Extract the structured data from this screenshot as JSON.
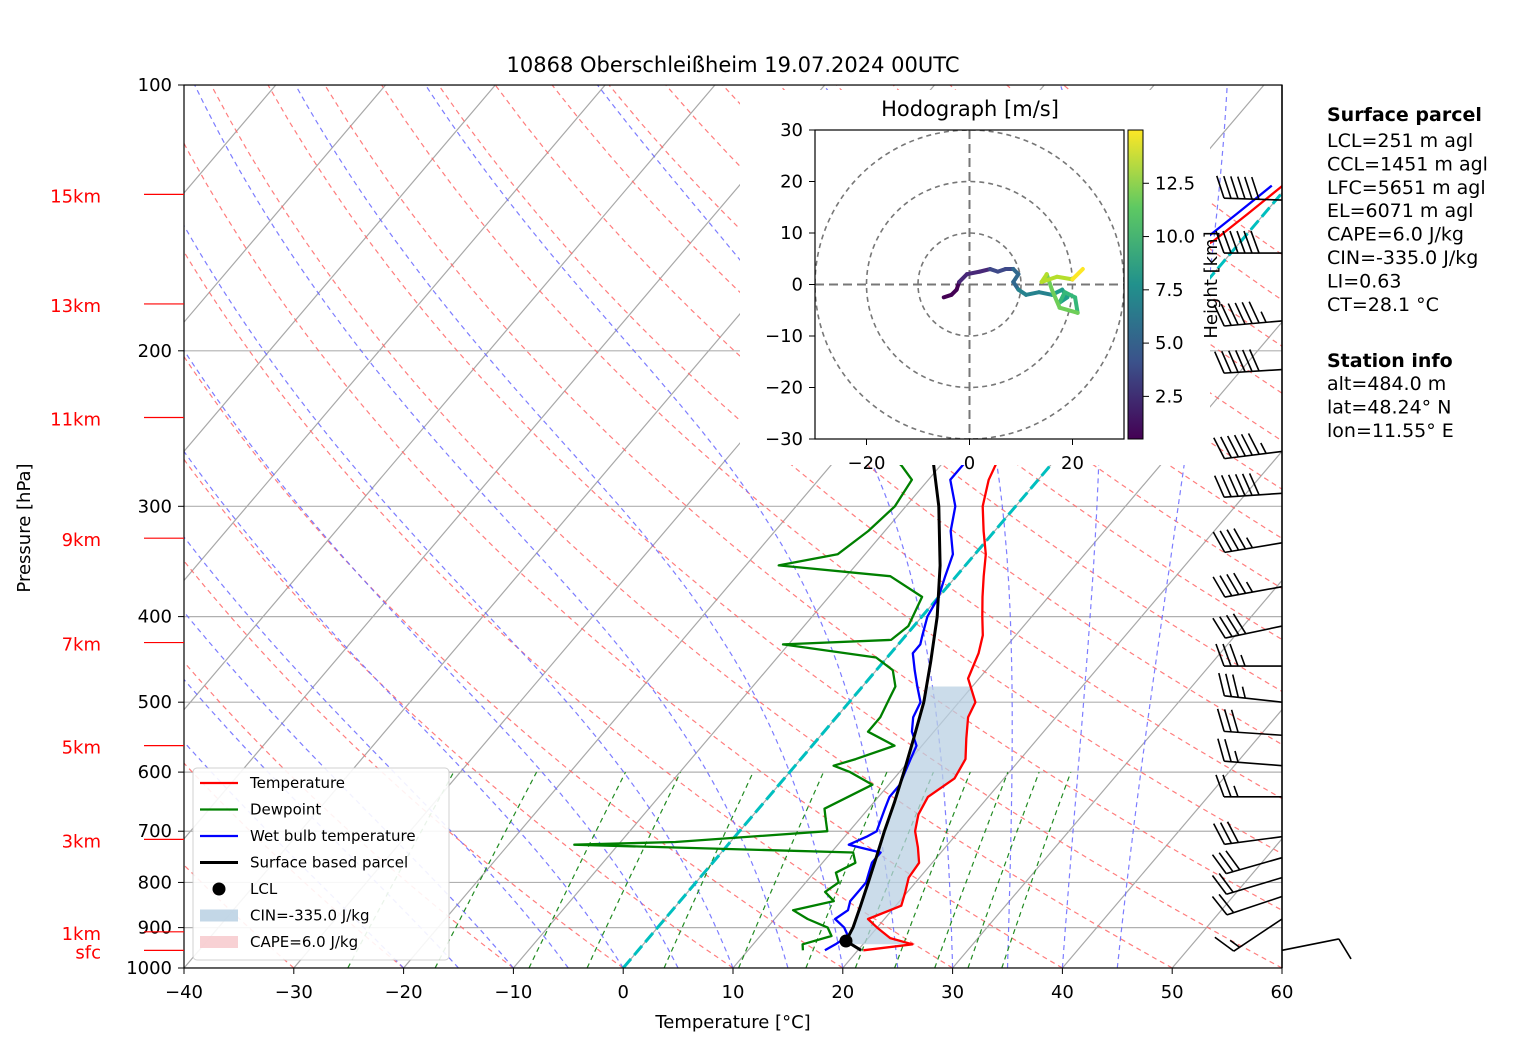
{
  "chart_data": {
    "type": "line",
    "title": "10868 Oberschleißheim 19.07.2024 00UTC",
    "xlabel": "Temperature [°C]",
    "ylabel": "Pressure [hPa]",
    "xlim": [
      -40,
      60
    ],
    "ylim": [
      1000,
      100
    ],
    "y_scale": "log",
    "grid": true,
    "legend_position": "lower-left",
    "x_ticks": [
      "−40",
      "−30",
      "−20",
      "−10",
      "0",
      "10",
      "20",
      "30",
      "40",
      "50",
      "60"
    ],
    "y_ticks": [
      {
        "p": 100,
        "label": "100"
      },
      {
        "p": 200,
        "label": "200"
      },
      {
        "p": 300,
        "label": "300"
      },
      {
        "p": 400,
        "label": "400"
      },
      {
        "p": 500,
        "label": "500"
      },
      {
        "p": 600,
        "label": "600"
      },
      {
        "p": 700,
        "label": "700"
      },
      {
        "p": 800,
        "label": "800"
      },
      {
        "p": 900,
        "label": "900"
      },
      {
        "p": 1000,
        "label": "1000"
      }
    ],
    "height_labels": [
      {
        "label": "sfc",
        "p": 955
      },
      {
        "label": "1km",
        "p": 910
      },
      {
        "label": "3km",
        "p": 715
      },
      {
        "label": "5km",
        "p": 560
      },
      {
        "label": "7km",
        "p": 428
      },
      {
        "label": "9km",
        "p": 326
      },
      {
        "label": "11km",
        "p": 238
      },
      {
        "label": "13km",
        "p": 177
      },
      {
        "label": "15km",
        "p": 133
      }
    ],
    "colors": {
      "temperature": "#ff0000",
      "dewpoint": "#008000",
      "wetbulb": "#0000ff",
      "parcel": "#000000",
      "cin": "#b9d0e3",
      "cape": "#f7c9cc",
      "zero_isotherm": "#00bfbf",
      "height_label": "#ff0000"
    },
    "series": [
      {
        "name": "Temperature",
        "points": [
          [
            955,
            20.5
          ],
          [
            940,
            24.5
          ],
          [
            925,
            22.0
          ],
          [
            900,
            20.0
          ],
          [
            880,
            18.5
          ],
          [
            850,
            20.5
          ],
          [
            820,
            19.8
          ],
          [
            790,
            19.0
          ],
          [
            760,
            18.8
          ],
          [
            730,
            17.5
          ],
          [
            700,
            16.0
          ],
          [
            670,
            15.0
          ],
          [
            640,
            14.5
          ],
          [
            610,
            15.5
          ],
          [
            580,
            15.0
          ],
          [
            550,
            13.5
          ],
          [
            520,
            12.0
          ],
          [
            500,
            11.5
          ],
          [
            470,
            9.0
          ],
          [
            440,
            8.0
          ],
          [
            420,
            7.0
          ],
          [
            400,
            5.5
          ],
          [
            380,
            4.0
          ],
          [
            360,
            2.5
          ],
          [
            340,
            1.0
          ],
          [
            320,
            -1.0
          ],
          [
            300,
            -3.0
          ],
          [
            280,
            -4.5
          ],
          [
            260,
            -5.5
          ],
          [
            240,
            -6.5
          ],
          [
            220,
            -8.0
          ],
          [
            205,
            -8.8
          ],
          [
            195,
            -8.5
          ],
          [
            180,
            -7.0
          ],
          [
            170,
            -6.0
          ],
          [
            165,
            -4.5
          ],
          [
            155,
            -3.5
          ],
          [
            150,
            -2.5
          ],
          [
            140,
            -1.5
          ],
          [
            130,
            -0.5
          ]
        ]
      },
      {
        "name": "Dewpoint",
        "points": [
          [
            955,
            15.0
          ],
          [
            940,
            14.5
          ],
          [
            920,
            16.5
          ],
          [
            900,
            15.5
          ],
          [
            880,
            13.0
          ],
          [
            860,
            11.0
          ],
          [
            840,
            14.0
          ],
          [
            820,
            12.5
          ],
          [
            800,
            13.0
          ],
          [
            780,
            12.0
          ],
          [
            760,
            13.0
          ],
          [
            740,
            12.0
          ],
          [
            725,
            -14.0
          ],
          [
            720,
            -5.0
          ],
          [
            700,
            8.0
          ],
          [
            680,
            7.0
          ],
          [
            660,
            6.0
          ],
          [
            620,
            8.5
          ],
          [
            600,
            5.5
          ],
          [
            590,
            3.5
          ],
          [
            580,
            5.0
          ],
          [
            560,
            7.5
          ],
          [
            540,
            4.0
          ],
          [
            520,
            4.0
          ],
          [
            500,
            3.5
          ],
          [
            480,
            3.0
          ],
          [
            460,
            1.5
          ],
          [
            445,
            -1.0
          ],
          [
            430,
            -10.5
          ],
          [
            425,
            -1.0
          ],
          [
            410,
            -0.5
          ],
          [
            380,
            -1.5
          ],
          [
            360,
            -6.0
          ],
          [
            350,
            -17.0
          ],
          [
            340,
            -12.5
          ],
          [
            320,
            -11.5
          ],
          [
            300,
            -11.0
          ],
          [
            280,
            -11.5
          ],
          [
            270,
            -13.5
          ],
          [
            260,
            -16.0
          ],
          [
            245,
            -22.0
          ],
          [
            230,
            -23.5
          ],
          [
            215,
            -23.0
          ],
          [
            200,
            -20.0
          ],
          [
            190,
            -22.0
          ],
          [
            185,
            -28.0
          ],
          [
            180,
            -25.0
          ],
          [
            175,
            -25.0
          ],
          [
            170,
            -29.0
          ],
          [
            165,
            -27.5
          ],
          [
            155,
            -28.5
          ],
          [
            150,
            -28.5
          ],
          [
            145,
            -29.0
          ],
          [
            140,
            -29.5
          ],
          [
            135,
            -30.0
          ],
          [
            130,
            -29.0
          ]
        ]
      },
      {
        "name": "Wet bulb temperature",
        "points": [
          [
            955,
            17.0
          ],
          [
            940,
            17.5
          ],
          [
            920,
            18.0
          ],
          [
            900,
            17.0
          ],
          [
            880,
            15.5
          ],
          [
            860,
            16.0
          ],
          [
            840,
            15.5
          ],
          [
            820,
            15.5
          ],
          [
            800,
            15.5
          ],
          [
            780,
            15.0
          ],
          [
            760,
            14.5
          ],
          [
            740,
            14.5
          ],
          [
            725,
            11.0
          ],
          [
            710,
            12.0
          ],
          [
            700,
            12.5
          ],
          [
            680,
            12.0
          ],
          [
            660,
            11.5
          ],
          [
            640,
            11.0
          ],
          [
            620,
            11.0
          ],
          [
            600,
            10.5
          ],
          [
            580,
            10.0
          ],
          [
            560,
            9.5
          ],
          [
            540,
            8.0
          ],
          [
            520,
            7.0
          ],
          [
            500,
            6.5
          ],
          [
            480,
            5.0
          ],
          [
            460,
            3.5
          ],
          [
            440,
            2.0
          ],
          [
            430,
            2.0
          ],
          [
            420,
            1.5
          ],
          [
            400,
            0.5
          ],
          [
            380,
            0.0
          ],
          [
            360,
            -1.0
          ],
          [
            340,
            -2.0
          ],
          [
            320,
            -4.0
          ],
          [
            300,
            -5.5
          ],
          [
            280,
            -8.0
          ],
          [
            260,
            -8.0
          ],
          [
            240,
            -9.0
          ],
          [
            220,
            -10.0
          ],
          [
            205,
            -10.5
          ],
          [
            195,
            -10.0
          ],
          [
            180,
            -8.5
          ],
          [
            170,
            -7.5
          ],
          [
            165,
            -6.0
          ],
          [
            155,
            -4.5
          ],
          [
            150,
            -3.5
          ],
          [
            140,
            -2.5
          ],
          [
            130,
            -1.5
          ]
        ]
      },
      {
        "name": "Surface based parcel",
        "points": [
          [
            955,
            20.3
          ],
          [
            932,
            18.2
          ],
          [
            900,
            17.8
          ],
          [
            850,
            16.8
          ],
          [
            800,
            15.7
          ],
          [
            750,
            14.5
          ],
          [
            700,
            13.2
          ],
          [
            650,
            11.9
          ],
          [
            600,
            10.4
          ],
          [
            550,
            8.7
          ],
          [
            500,
            6.8
          ],
          [
            450,
            4.3
          ],
          [
            400,
            1.4
          ],
          [
            350,
            -2.3
          ],
          [
            300,
            -7.0
          ],
          [
            250,
            -13.2
          ],
          [
            200,
            -20.7
          ],
          [
            150,
            -29.5
          ],
          [
            130,
            -33.0
          ]
        ]
      }
    ],
    "lcl_marker": {
      "p": 932,
      "t": 18.2
    },
    "legend": [
      "Temperature",
      "Dewpoint",
      "Wet bulb temperature",
      "Surface based parcel",
      "LCL",
      "CIN=-335.0 J/kg",
      "CAPE=6.0 J/kg"
    ],
    "wind_barbs": [
      {
        "p": 955,
        "u": 5,
        "v": 1
      },
      {
        "p": 880,
        "u": -6,
        "v": -4
      },
      {
        "p": 830,
        "u": -9,
        "v": -3
      },
      {
        "p": 790,
        "u": -10,
        "v": -3
      },
      {
        "p": 750,
        "u": -14,
        "v": -4
      },
      {
        "p": 710,
        "u": -15,
        "v": -2
      },
      {
        "p": 640,
        "u": -13,
        "v": 0
      },
      {
        "p": 590,
        "u": -13,
        "v": 1
      },
      {
        "p": 545,
        "u": -15,
        "v": 1
      },
      {
        "p": 500,
        "u": -18,
        "v": 2
      },
      {
        "p": 455,
        "u": -19,
        "v": 0
      },
      {
        "p": 410,
        "u": -19,
        "v": -4
      },
      {
        "p": 370,
        "u": -22,
        "v": -4
      },
      {
        "p": 330,
        "u": -24,
        "v": -4
      },
      {
        "p": 290,
        "u": -30,
        "v": -2
      },
      {
        "p": 260,
        "u": -32,
        "v": -4
      },
      {
        "p": 210,
        "u": -32,
        "v": -2
      },
      {
        "p": 185,
        "u": -34,
        "v": -3
      },
      {
        "p": 155,
        "u": -32,
        "v": 0
      },
      {
        "p": 135,
        "u": -30,
        "v": 1
      }
    ],
    "hodograph": {
      "title": "Hodograph [m/s]",
      "xlim": [
        -30,
        30
      ],
      "ylim": [
        -30,
        30
      ],
      "ticks": [
        -30,
        -20,
        -10,
        0,
        10,
        20,
        30
      ],
      "tick_labels_x": [
        "−20",
        "0",
        "20"
      ],
      "tick_labels_y": [
        "30",
        "20",
        "10",
        "0",
        "−10",
        "−20",
        "−30"
      ],
      "rings": [
        10,
        20,
        30
      ],
      "colorbar_label": "Height [km]",
      "colorbar_ticks": [
        "2.5",
        "5.0",
        "7.5",
        "10.0",
        "12.5"
      ],
      "colorbar_range": [
        0.5,
        15
      ],
      "points": [
        [
          -5,
          -2.5,
          0.5
        ],
        [
          -3.5,
          -2.0,
          1.0
        ],
        [
          -2.5,
          -1.0,
          1.5
        ],
        [
          -2,
          0.5,
          2.0
        ],
        [
          -0.5,
          2,
          2.5
        ],
        [
          2,
          2.5,
          3.0
        ],
        [
          4,
          3,
          3.5
        ],
        [
          5.5,
          2.5,
          4.0
        ],
        [
          7,
          3,
          4.5
        ],
        [
          8.5,
          3,
          5.0
        ],
        [
          9.5,
          2,
          5.5
        ],
        [
          8.5,
          0.5,
          6.0
        ],
        [
          9.5,
          -1,
          6.5
        ],
        [
          11,
          -2,
          7.0
        ],
        [
          13.5,
          -1.5,
          7.5
        ],
        [
          16,
          -2,
          8.0
        ],
        [
          18,
          -1,
          8.5
        ],
        [
          19,
          -2.5,
          9.0
        ],
        [
          17.5,
          -3.5,
          9.5
        ],
        [
          18.5,
          -1.5,
          10.0
        ],
        [
          20.5,
          -2.5,
          10.5
        ],
        [
          21,
          -5.5,
          11.0
        ],
        [
          17.5,
          -4.5,
          11.5
        ],
        [
          16,
          -1,
          12.0
        ],
        [
          15,
          2,
          12.5
        ],
        [
          14,
          0.5,
          13.0
        ],
        [
          17,
          1.5,
          13.5
        ],
        [
          20,
          1,
          14.0
        ],
        [
          22,
          3,
          14.5
        ]
      ]
    },
    "surface_parcel": {
      "title": "Surface parcel",
      "lines": [
        "LCL=251 m agl",
        "CCL=1451 m agl",
        "LFC=5651 m agl",
        "EL=6071 m agl",
        "CAPE=6.0 J/kg",
        "CIN=-335.0 J/kg",
        "LI=0.63",
        "CT=28.1 °C"
      ]
    },
    "station_info": {
      "title": "Station info",
      "lines": [
        "alt=484.0 m",
        "lat=48.24° N",
        "lon=11.55° E"
      ]
    }
  }
}
